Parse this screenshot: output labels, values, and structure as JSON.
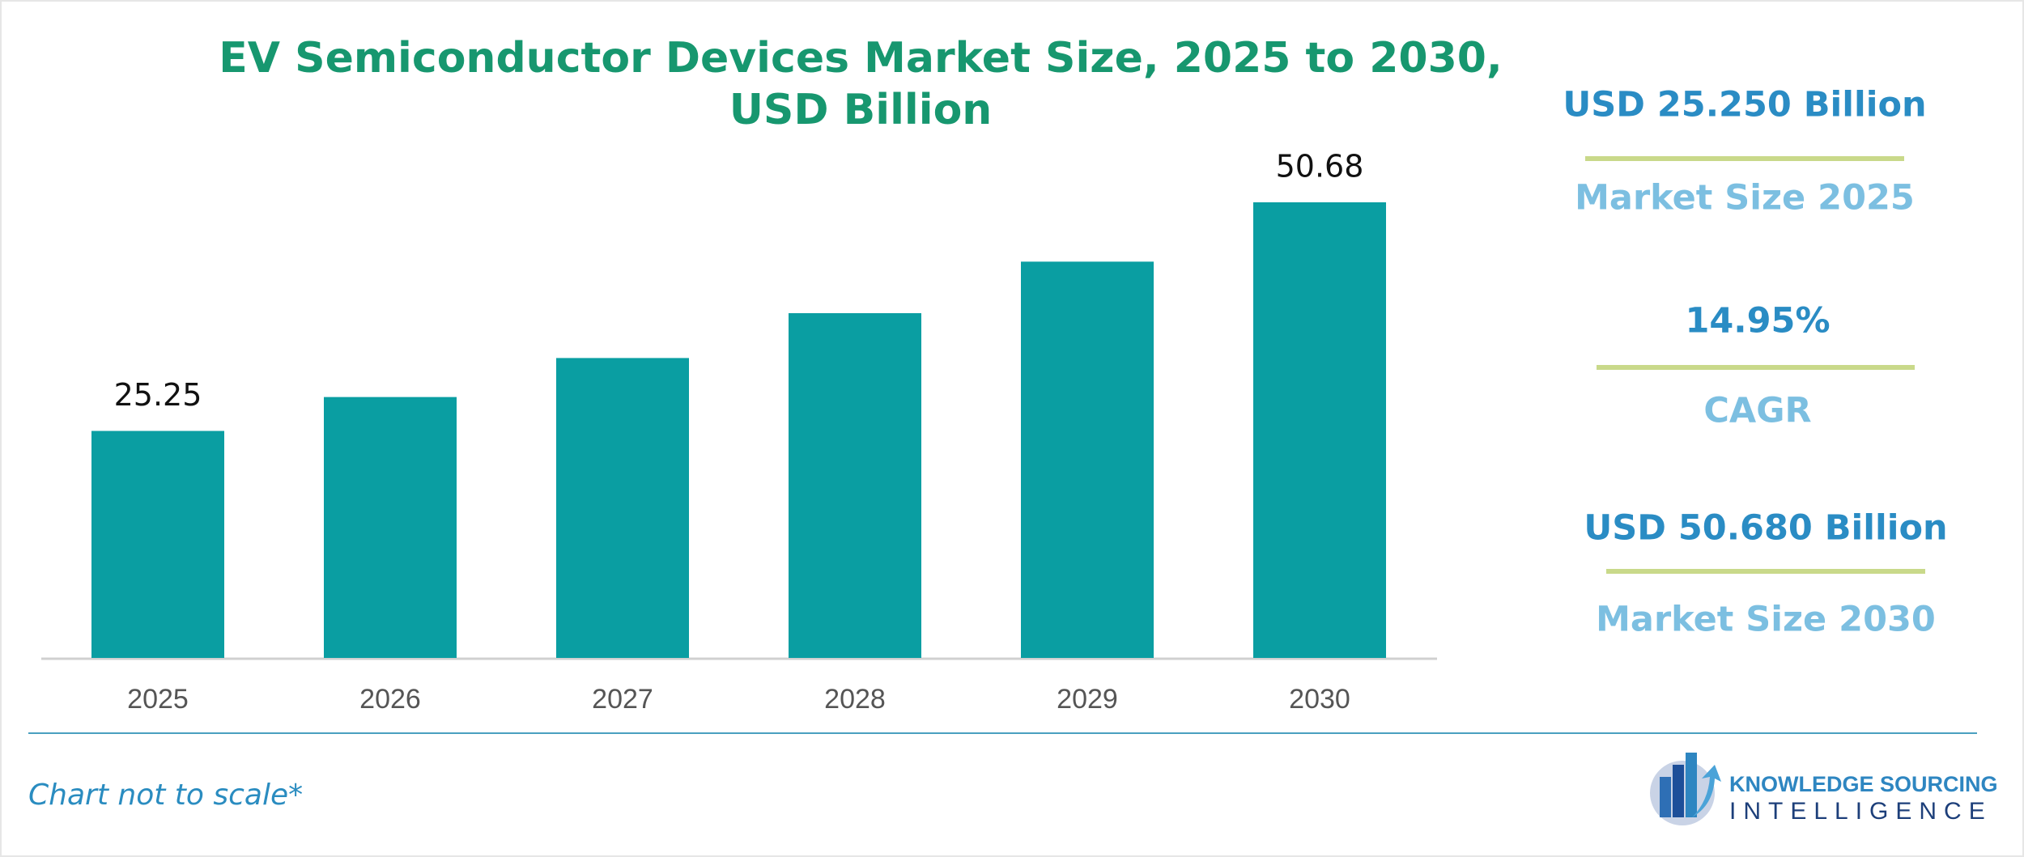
{
  "chart_data": {
    "type": "bar",
    "title": "EV Semiconductor Devices Market Size, 2025 to 2030,",
    "subtitle": "USD Billion",
    "categories": [
      "2025",
      "2026",
      "2027",
      "2028",
      "2029",
      "2030"
    ],
    "values": [
      25.25,
      29.02,
      33.36,
      38.35,
      44.08,
      50.68
    ],
    "value_labels": [
      "25.25",
      null,
      null,
      null,
      null,
      "50.68"
    ],
    "color": "#0a9ea2"
  },
  "stats": [
    {
      "value": "USD 25.250 Billion",
      "label": "Market Size 2025"
    },
    {
      "value": "14.95%",
      "label": "CAGR"
    },
    {
      "value": "USD 50.680 Billion",
      "label": "Market Size 2030"
    }
  ],
  "footer": {
    "note": "Chart not to scale*",
    "logo_top": "KNOWLEDGE SOURCING",
    "logo_bottom": "INTELLIGENCE"
  }
}
